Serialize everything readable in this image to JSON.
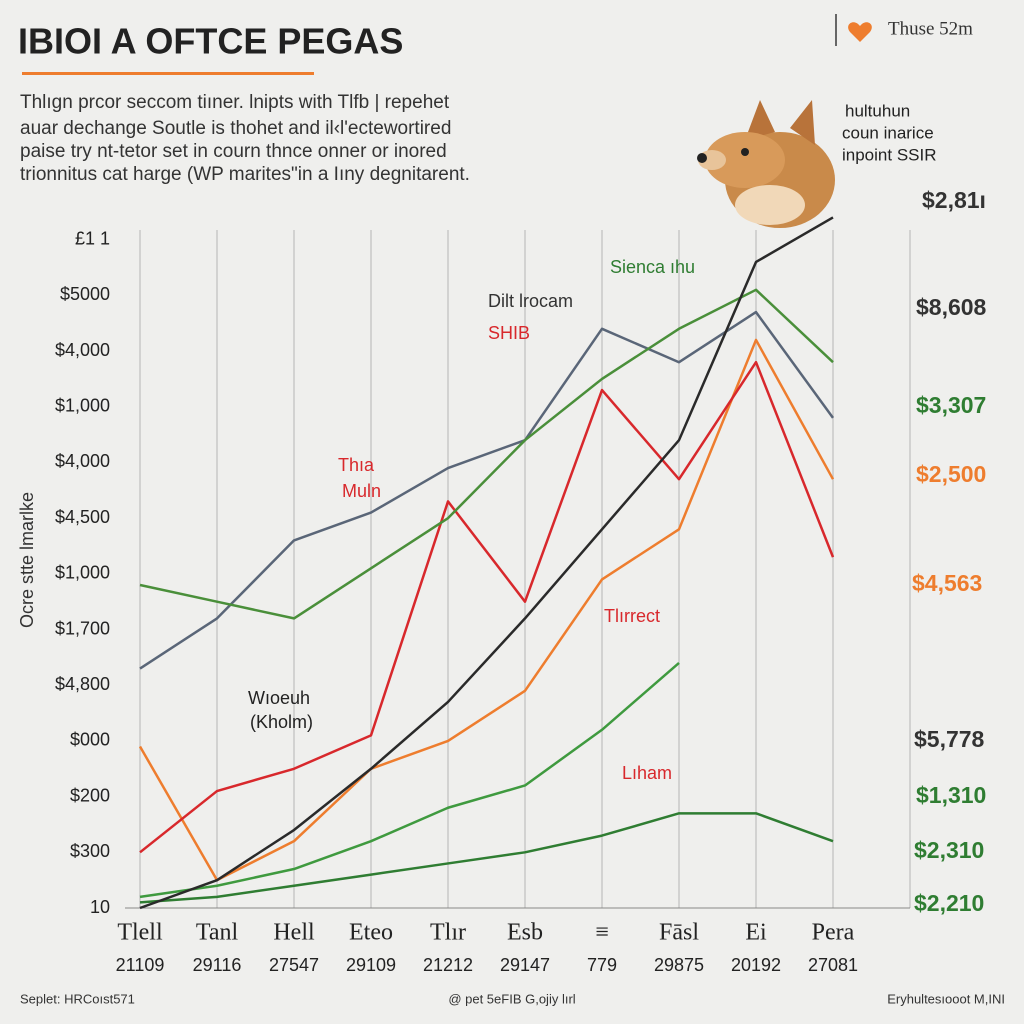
{
  "header": {
    "title": "IBIOI A OFTCE PEGAS",
    "badge": "Thuse 52m",
    "description": [
      "Thlıgn prcor seccom tiıner. lnipts with Tlfb | repehet",
      "auar dechange Soutle is thohet and il‹l'ectewortired",
      "paise try nt-tetor set in courn thnce onner or inored",
      "trionnitus cat harge (WP marites\"in a Iıny degnitarent."
    ],
    "caption": [
      "hultuhun",
      "coun inarice",
      "inpoint SSIR"
    ]
  },
  "chart_data": {
    "type": "line",
    "y_axis_label": "Ocre stte lmarlke",
    "categories": [
      "Tlell",
      "Tanl",
      "Hell",
      "Eteo",
      "Tlır",
      "Esb",
      "≡",
      "Fāsl",
      "Ei",
      "Pera"
    ],
    "category_numbers": [
      "21109",
      "29116",
      "27547",
      "29109",
      "21212",
      "29147",
      "779",
      "29875",
      "20192",
      "27081"
    ],
    "ylim": [
      0,
      13
    ],
    "yticks": [
      {
        "value": 0,
        "label": "10"
      },
      {
        "value": 1,
        "label": "$300"
      },
      {
        "value": 2,
        "label": "$200"
      },
      {
        "value": 3,
        "label": "$000"
      },
      {
        "value": 4,
        "label": "$4,800"
      },
      {
        "value": 5,
        "label": "$1,700"
      },
      {
        "value": 6,
        "label": "$1,000"
      },
      {
        "value": 7,
        "label": "$4,500"
      },
      {
        "value": 8,
        "label": "$4,000"
      },
      {
        "value": 9,
        "label": "$1,000"
      },
      {
        "value": 10,
        "label": "$4,000"
      },
      {
        "value": 11,
        "label": "$5000"
      },
      {
        "value": 12,
        "label": "£1 1"
      }
    ],
    "grid": true,
    "series": [
      {
        "color": "#2f7d32",
        "values": [
          0.1,
          0.2,
          0.4,
          0.6,
          0.8,
          1.0,
          1.3,
          1.7,
          1.7,
          1.2
        ]
      },
      {
        "color": "#3f9a3f",
        "values": [
          0.2,
          0.4,
          0.7,
          1.2,
          1.8,
          2.2,
          3.2,
          4.4,
          null,
          null
        ]
      },
      {
        "color": "#ee7d2e",
        "values": [
          2.9,
          0.5,
          1.2,
          2.5,
          3.0,
          3.9,
          5.9,
          6.8,
          10.2,
          7.7
        ]
      },
      {
        "color": "#d8282c",
        "values": [
          1.0,
          2.1,
          2.5,
          3.1,
          7.3,
          5.5,
          9.3,
          7.7,
          9.8,
          6.3
        ]
      },
      {
        "color": "#5a6678",
        "values": [
          4.3,
          5.2,
          6.6,
          7.1,
          7.9,
          8.4,
          10.4,
          9.8,
          10.7,
          8.8
        ]
      },
      {
        "color": "#4a8f3a",
        "values": [
          5.8,
          5.5,
          5.2,
          6.1,
          7.0,
          8.4,
          9.5,
          10.4,
          11.1,
          9.8
        ]
      },
      {
        "color": "#2a2a2a",
        "values": [
          0,
          0.5,
          1.4,
          2.5,
          3.7,
          5.2,
          6.8,
          8.4,
          11.6,
          12.4
        ]
      }
    ],
    "annotations": [
      "Sienca ıhu",
      "Dilt lrocam",
      "SHIB",
      "Thıa",
      "Muln",
      "Tlırrect",
      "Wıoeuh",
      "(Kholm)",
      "Lıham"
    ],
    "right_labels": [
      "$2,81ı",
      "$8,608",
      "$3,307",
      "$2,500",
      "$4,563",
      "$5,778",
      "$1,310",
      "$2,310",
      "$2,210"
    ]
  },
  "footer": {
    "left": "Seplet: HRCoıst571",
    "center": "@ pet 5eFIB G,ojiy lırl",
    "right": "Eryhultesıooot M,INI"
  }
}
